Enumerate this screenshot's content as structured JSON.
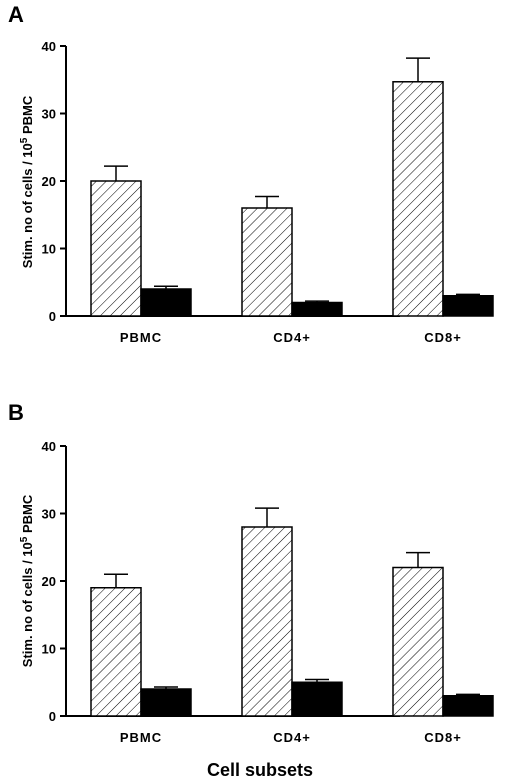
{
  "figure": {
    "xlabel": "Cell subsets"
  },
  "chart_data": [
    {
      "panel": "A",
      "type": "bar",
      "categories": [
        "PBMC",
        "CD4+",
        "CD8+"
      ],
      "ylabel_main": "Stim. no of cells / 10",
      "ylabel_exp": "5",
      "ylabel_tail": " PBMC",
      "ylim": [
        0,
        40
      ],
      "yticks": [
        0,
        10,
        20,
        30,
        40
      ],
      "series": [
        {
          "fill": "hatched",
          "values": [
            20,
            16,
            34.7
          ],
          "errors": [
            2.2,
            1.7,
            3.5
          ]
        },
        {
          "fill": "solid",
          "values": [
            4,
            2,
            3
          ],
          "errors": [
            0.4,
            0.2,
            0.2
          ]
        }
      ]
    },
    {
      "panel": "B",
      "type": "bar",
      "categories": [
        "PBMC",
        "CD4+",
        "CD8+"
      ],
      "ylabel_main": "Stim. no of cells / 10",
      "ylabel_exp": "5",
      "ylabel_tail": " PBMC",
      "ylim": [
        0,
        40
      ],
      "yticks": [
        0,
        10,
        20,
        30,
        40
      ],
      "series": [
        {
          "fill": "hatched",
          "values": [
            19,
            28,
            22
          ],
          "errors": [
            2,
            2.8,
            2.2
          ]
        },
        {
          "fill": "solid",
          "values": [
            4,
            5,
            3
          ],
          "errors": [
            0.3,
            0.4,
            0.2
          ]
        }
      ]
    }
  ]
}
